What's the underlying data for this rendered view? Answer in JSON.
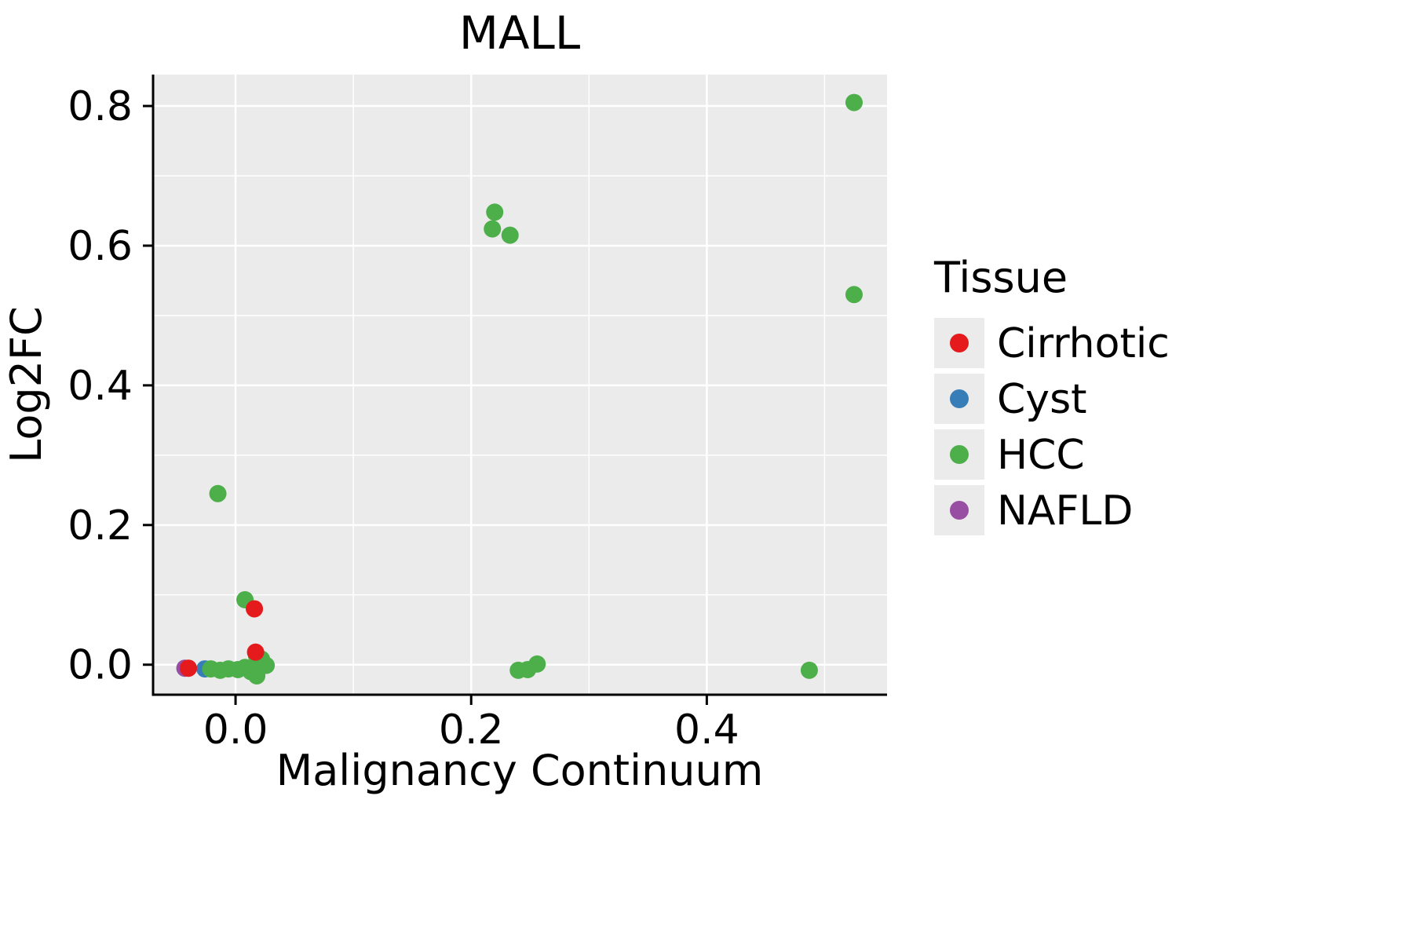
{
  "chart_data": {
    "type": "scatter",
    "title": "MALL",
    "xlabel": "Malignancy Continuum",
    "ylabel": "Log2FC",
    "xlim": [
      -0.07,
      0.553
    ],
    "ylim": [
      -0.043,
      0.845
    ],
    "x_ticks": [
      0.0,
      0.2,
      0.4
    ],
    "y_ticks": [
      0.0,
      0.2,
      0.4,
      0.6,
      0.8
    ],
    "x_minor_ticks": [
      0.1,
      0.3,
      0.5
    ],
    "y_minor_ticks": [
      0.1,
      0.3,
      0.5,
      0.7
    ],
    "grid": true,
    "panel_background": "#ebebeb",
    "grid_color": "#ffffff",
    "axis_color": "#000000",
    "point_radius": 11,
    "legend_title": "Tissue",
    "legend_position": "right",
    "legend_key_background": "#ebebeb",
    "legend_order": [
      "Cirrhotic",
      "Cyst",
      "HCC",
      "NAFLD"
    ],
    "series": [
      {
        "name": "NAFLD",
        "color": "#984ea3",
        "points": [
          [
            -0.043,
            -0.005
          ]
        ]
      },
      {
        "name": "Cyst",
        "color": "#377eb8",
        "points": [
          [
            -0.026,
            -0.006
          ]
        ]
      },
      {
        "name": "HCC",
        "color": "#4daf4a",
        "points": [
          [
            0.525,
            0.805
          ],
          [
            0.22,
            0.648
          ],
          [
            0.218,
            0.624
          ],
          [
            0.233,
            0.615
          ],
          [
            0.525,
            0.53
          ],
          [
            -0.015,
            0.245
          ],
          [
            0.008,
            0.093
          ],
          [
            0.018,
            0.012
          ],
          [
            0.022,
            0.008
          ],
          [
            -0.021,
            -0.006
          ],
          [
            -0.013,
            -0.008
          ],
          [
            -0.006,
            -0.006
          ],
          [
            0.002,
            -0.007
          ],
          [
            0.008,
            -0.004
          ],
          [
            0.013,
            -0.01
          ],
          [
            0.018,
            -0.016
          ],
          [
            0.02,
            -0.004
          ],
          [
            0.026,
            -0.001
          ],
          [
            0.24,
            -0.008
          ],
          [
            0.248,
            -0.007
          ],
          [
            0.256,
            0.001
          ],
          [
            0.487,
            -0.008
          ]
        ]
      },
      {
        "name": "Cirrhotic",
        "color": "#e41a1c",
        "points": [
          [
            -0.04,
            -0.005
          ],
          [
            0.016,
            0.08
          ],
          [
            0.017,
            0.018
          ]
        ]
      }
    ]
  }
}
